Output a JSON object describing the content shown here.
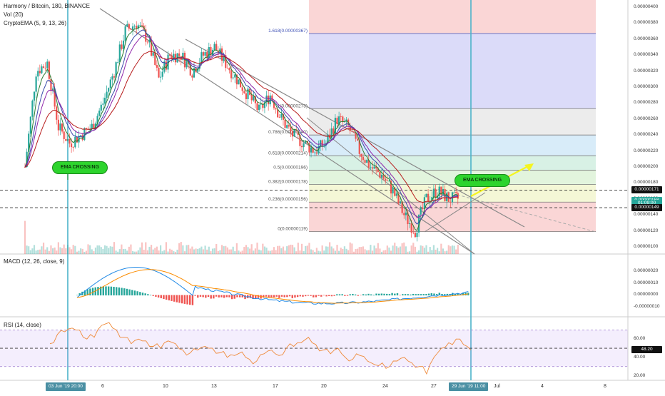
{
  "header": {
    "title": "Harmony / Bitcoin, 180, BINANCE",
    "vol": "Vol (20)",
    "ema": "CryptoEMA (5, 9, 13, 26)"
  },
  "colors": {
    "up": "#26a69a",
    "down": "#ef5350",
    "accent": "#4bb3c9",
    "fibLine": "#3f51b5"
  },
  "chart_data": [
    {
      "type": "candlestick",
      "title": "Harmony / Bitcoin, 180, BINANCE",
      "ylim": [
        9.1e-07,
        4.09e-06
      ],
      "y_ticks": [
        "0.00000400",
        "0.00000380",
        "0.00000360",
        "0.00000340",
        "0.00000320",
        "0.00000300",
        "0.00000280",
        "0.00000260",
        "0.00000240",
        "0.00000220",
        "0.00000200",
        "0.00000180",
        "0.00000160",
        "0.00000140",
        "0.00000120",
        "0.00000100"
      ],
      "x_ticks": [
        "6",
        "10",
        "13",
        "17",
        "20",
        "24",
        "27",
        "Jul",
        "4",
        "8"
      ],
      "x_highlight": [
        "03 Jun '19  20:00",
        "29 Jun '19  11:00"
      ],
      "price_tags": [
        {
          "label": "0.00000171",
          "value": 1.71e-06,
          "color": "#111"
        },
        {
          "label": "0.00000158",
          "value": 1.58e-06,
          "color": "#26a69a"
        },
        {
          "label": "01:09:00",
          "value": 1.54e-06,
          "color": "#26a69a"
        },
        {
          "label": "0.00000149",
          "value": 1.49e-06,
          "color": "#111"
        }
      ],
      "fibonacci": [
        {
          "label": "1.618(0.00000367)",
          "value": 3.67e-06
        },
        {
          "label": "1(0.00000273)",
          "value": 2.73e-06
        },
        {
          "label": "0.786(0.00000240)",
          "value": 2.4e-06
        },
        {
          "label": "0.618(0.00000214)",
          "value": 2.14e-06
        },
        {
          "label": "0.5(0.00000196)",
          "value": 1.96e-06
        },
        {
          "label": "0.382(0.00000178)",
          "value": 1.78e-06
        },
        {
          "label": "0.236(0.00000156)",
          "value": 1.56e-06
        },
        {
          "label": "0(0.00000119)",
          "value": 1.19e-06
        }
      ],
      "annotations": [
        "EMA CROSSING",
        "EMA CROSSING"
      ],
      "close_series": [
        2e-06,
        3.2e-06,
        3.3e-06,
        2.5e-06,
        2.3e-06,
        2.4e-06,
        2.5e-06,
        2.8e-06,
        3.2e-06,
        3.7e-06,
        3.8e-06,
        3.6e-06,
        3.1e-06,
        3.4e-06,
        3.4e-06,
        3.2e-06,
        3.4e-06,
        3.5e-06,
        3.3e-06,
        3.1e-06,
        2.9e-06,
        2.7e-06,
        2.9e-06,
        2.6e-06,
        2.4e-06,
        2.3e-06,
        2.2e-06,
        2.3e-06,
        2.6e-06,
        2.5e-06,
        2.2e-06,
        2e-06,
        1.9e-06,
        1.7e-06,
        1.4e-06,
        1.2e-06,
        1.6e-06,
        1.7e-06,
        1.6e-06,
        1.6e-06
      ]
    },
    {
      "type": "line",
      "title": "MACD (12, 26, close, 9)",
      "y_ticks": [
        "0.00000020",
        "0.00000010",
        "0.00000000",
        "-0.00000010"
      ],
      "ylim": [
        -1.8e-07,
        2.8e-07
      ]
    },
    {
      "type": "line",
      "title": "RSI (14, close)",
      "y_ticks": [
        "60.00",
        "40.00",
        "20.00"
      ],
      "value_tag": "48.20",
      "ylim": [
        15,
        82
      ],
      "bands": [
        30,
        70
      ],
      "values": [
        55,
        65,
        68,
        72,
        70,
        60,
        62,
        75,
        78,
        70,
        62,
        55,
        60,
        58,
        52,
        50,
        58,
        55,
        48,
        45,
        48,
        52,
        50,
        45,
        40,
        42,
        46,
        38,
        36,
        44,
        48,
        42,
        50,
        52,
        56,
        62,
        54,
        48,
        44,
        50,
        40,
        38,
        42,
        36,
        32,
        34,
        30,
        36,
        40,
        34,
        30,
        22,
        40,
        50,
        56,
        60,
        54,
        48
      ]
    }
  ]
}
